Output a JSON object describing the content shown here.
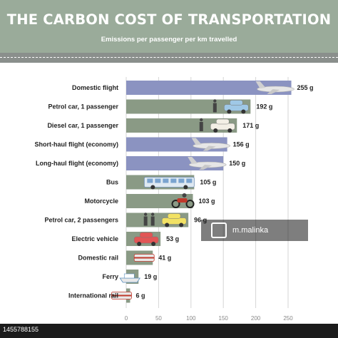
{
  "header": {
    "title": "THE CARBON COST OF TRANSPORTATION",
    "subtitle": "Emissions per passenger per km travelled"
  },
  "colors": {
    "header_bg": "#9aab9a",
    "road": "#8a8f8c",
    "bar_blue": "#8b93c1",
    "bar_green": "#8a9a85",
    "value_label": "#222222"
  },
  "chart_data": {
    "type": "bar",
    "orientation": "horizontal",
    "title": "THE CARBON COST OF TRANSPORTATION",
    "subtitle": "Emissions per passenger per km travelled",
    "xlabel": "",
    "ylabel": "",
    "xlim": [
      0,
      250
    ],
    "xticks": [
      0,
      50,
      100,
      150,
      200,
      250
    ],
    "grid": true,
    "categories": [
      "Domestic flight",
      "Petrol car, 1 passenger",
      "Diesel car, 1 passenger",
      "Short-haul flight (economy)",
      "Long-haul flight (economy)",
      "Bus",
      "Motorcycle",
      "Petrol car, 2 passengers",
      "Electric vehicle",
      "Domestic rail",
      "Ferry",
      "International rail"
    ],
    "values": [
      255,
      192,
      171,
      156,
      150,
      105,
      103,
      96,
      53,
      41,
      19,
      6
    ],
    "value_labels": [
      "255 g",
      "192 g",
      "171 g",
      "156 g",
      "150 g",
      "105 g",
      "103 g",
      "96 g",
      "53 g",
      "41 g",
      "19 g",
      "6 g"
    ],
    "bar_colors": [
      "#8b93c1",
      "#8a9a85",
      "#8a9a85",
      "#8b93c1",
      "#8b93c1",
      "#8a9a85",
      "#8a9a85",
      "#8a9a85",
      "#8a9a85",
      "#8a9a85",
      "#8a9a85",
      "#8a9a85"
    ],
    "icons": [
      "plane-icon",
      "car-with-person-icon",
      "car-with-person-icon",
      "plane-icon",
      "plane-icon",
      "bus-icon",
      "motorcycle-icon",
      "car-with-two-people-icon",
      "electric-car-icon",
      "train-icon",
      "ferry-icon",
      "train-icon"
    ]
  },
  "footer": {
    "stock_id": "1455788155"
  },
  "watermark": {
    "text": "m.malinka"
  }
}
